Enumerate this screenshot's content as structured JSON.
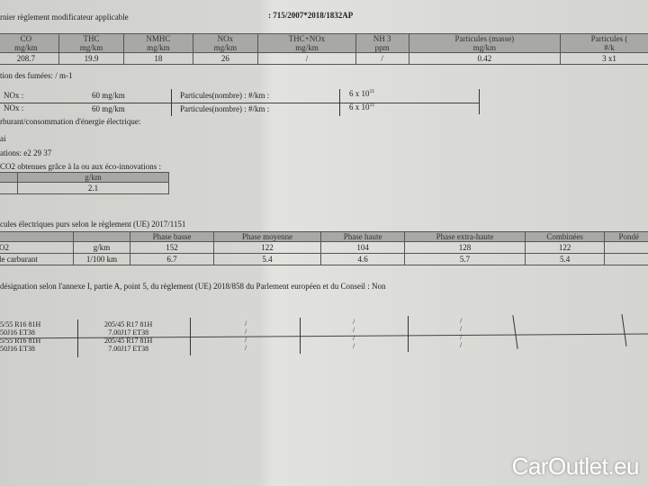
{
  "header": {
    "left": "rnier règlement modificateur applicable",
    "right": ": 715/2007*2018/1832AP"
  },
  "emissions": {
    "columns": [
      {
        "name": "CO",
        "unit": "mg/km"
      },
      {
        "name": "THC",
        "unit": "mg/km"
      },
      {
        "name": "NMHC",
        "unit": "mg/km"
      },
      {
        "name": "NOx",
        "unit": "mg/km"
      },
      {
        "name": "THC+NOx",
        "unit": "mg/km"
      },
      {
        "name": "NH 3",
        "unit": "ppm"
      },
      {
        "name": "Particules (masse)",
        "unit": "mg/km"
      },
      {
        "name": "Particules (",
        "unit": "#/k"
      }
    ],
    "values": [
      "208.7",
      "19.9",
      "18",
      "26",
      "/",
      "/",
      "0.42",
      "3 x1"
    ]
  },
  "smoke": "tion des fumées: / m-1",
  "rde": [
    {
      "label": "NOx :",
      "value": "60 mg/km",
      "plabel": "Particules(nombre) : #/km :",
      "pvalue": "6 x 10",
      "exp": "11"
    },
    {
      "label": "NOx :",
      "value": "60 mg/km",
      "plabel": "Particules(nombre) : #/km :",
      "pvalue": "6 x 10",
      "exp": "11"
    }
  ],
  "fuel_heading": "rburant/consommation d'énergie électrique:",
  "line_ai": "ai",
  "ecoinnov": "ations: e2 29 37",
  "co2_eco_heading": "CO2 obtenues grâce à la ou aux éco-innovations :",
  "co2_eco": {
    "unit": "g/km",
    "value": "2.1"
  },
  "wltp_heading": "cules électriques purs selon le règlement (UE) 2017/1151",
  "wltp": {
    "columns": [
      "",
      "",
      "Phase basse",
      "Phase moyenne",
      "Phase haute",
      "Phase extra-haute",
      "Combinées",
      "Pondé"
    ],
    "rows": [
      [
        "O2",
        "g/km",
        "152",
        "122",
        "104",
        "128",
        "122",
        ""
      ],
      [
        "le carburant",
        "1/100 km",
        "6.7",
        "5.4",
        "4.6",
        "5.7",
        "5.4",
        ""
      ]
    ]
  },
  "designation": "désignation selon l'annexe I, partie A, point 5, du règlement (UE) 2018/858 du Parlement européen et du Conseil : Non",
  "tyres": {
    "col1": [
      "5/55 R16 81H",
      "50J16 ET38",
      "5/55 R16 81H",
      "50J16 ET38"
    ],
    "col2": [
      "205/45 R17 81H",
      "7.00J17 ET38",
      "205/45 R17 81H",
      "7.00J17 ET38"
    ]
  },
  "watermark": "CarOutlet.eu"
}
